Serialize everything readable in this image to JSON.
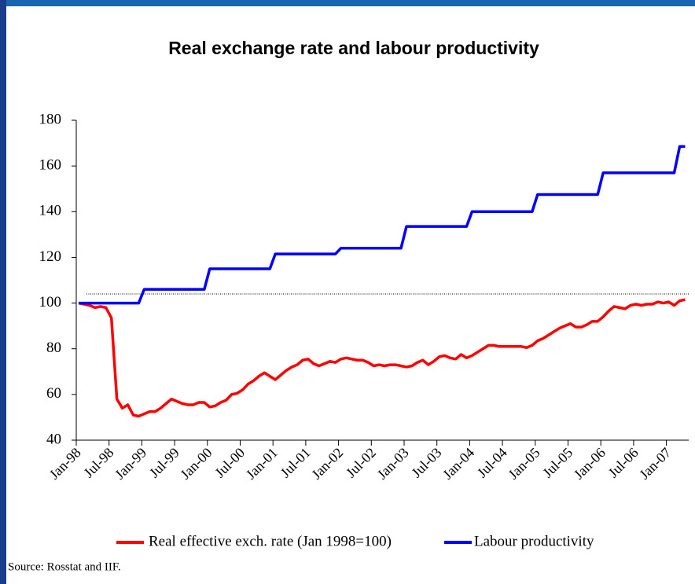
{
  "chart_data": {
    "type": "line",
    "title": "Real exchange rate and labour productivity",
    "source": "Source: Rosstat and IIF.",
    "categories": [
      "Jan-98",
      null,
      null,
      null,
      null,
      null,
      "Jul-98",
      null,
      null,
      null,
      null,
      null,
      "Jan-99",
      null,
      null,
      null,
      null,
      null,
      "Jul-99",
      null,
      null,
      null,
      null,
      null,
      "Jan-00",
      null,
      null,
      null,
      null,
      null,
      "Jul-00",
      null,
      null,
      null,
      null,
      null,
      "Jan-01",
      null,
      null,
      null,
      null,
      null,
      "Jul-01",
      null,
      null,
      null,
      null,
      null,
      "Jan-02",
      null,
      null,
      null,
      null,
      null,
      "Jul-02",
      null,
      null,
      null,
      null,
      null,
      "Jan-03",
      null,
      null,
      null,
      null,
      null,
      "Jul-03",
      null,
      null,
      null,
      null,
      null,
      "Jan-04",
      null,
      null,
      null,
      null,
      null,
      "Jul-04",
      null,
      null,
      null,
      null,
      null,
      "Jan-05",
      null,
      null,
      null,
      null,
      null,
      "Jul-05",
      null,
      null,
      null,
      null,
      null,
      "Jan-06",
      null,
      null,
      null,
      null,
      null,
      "Jul-06",
      null,
      null,
      null,
      null,
      null,
      "Jan-07",
      null,
      null,
      null
    ],
    "series": [
      {
        "name": "Real effective exch. rate (Jan 1998=100)",
        "color": "#ff0000",
        "values": [
          100,
          99.5,
          99,
          98,
          98.5,
          98,
          93.5,
          58,
          54,
          55.5,
          51,
          50.5,
          51.5,
          52.5,
          52.5,
          54,
          56,
          58,
          57,
          56,
          55.5,
          55.5,
          56.5,
          56.5,
          54.5,
          55,
          56.5,
          57.5,
          60,
          60.5,
          62,
          64.5,
          66,
          68,
          69.5,
          68,
          66.5,
          68.5,
          70.5,
          72,
          73,
          75,
          75.5,
          73.5,
          72.5,
          73.5,
          74.5,
          74,
          75.5,
          76,
          75.5,
          75,
          75,
          74,
          72.5,
          73,
          72.5,
          73,
          73,
          72.5,
          72,
          72.5,
          74,
          75,
          73,
          74.5,
          76.5,
          77,
          76,
          75.5,
          77.5,
          76,
          77,
          78.5,
          80,
          81.5,
          81.5,
          81,
          81,
          81,
          81,
          81,
          80.5,
          81.5,
          83.5,
          84.5,
          86,
          87.5,
          89,
          90,
          91,
          89.5,
          89.5,
          90.5,
          92,
          92,
          94,
          96.5,
          98.5,
          98,
          97.5,
          99,
          99.5,
          99,
          99.5,
          99.5,
          100.5,
          100,
          100.5,
          99,
          101,
          101.5
        ]
      },
      {
        "name": "Labour productivity",
        "color": "#0000ff",
        "values": [
          100,
          100,
          100,
          100,
          100,
          100,
          100,
          100,
          100,
          100,
          100,
          100,
          106,
          106,
          106,
          106,
          106,
          106,
          106,
          106,
          106,
          106,
          106,
          106,
          115,
          115,
          115,
          115,
          115,
          115,
          115,
          115,
          115,
          115,
          115,
          115,
          121.5,
          121.5,
          121.5,
          121.5,
          121.5,
          121.5,
          121.5,
          121.5,
          121.5,
          121.5,
          121.5,
          121.5,
          124,
          124,
          124,
          124,
          124,
          124,
          124,
          124,
          124,
          124,
          124,
          124,
          133.5,
          133.5,
          133.5,
          133.5,
          133.5,
          133.5,
          133.5,
          133.5,
          133.5,
          133.5,
          133.5,
          133.5,
          140,
          140,
          140,
          140,
          140,
          140,
          140,
          140,
          140,
          140,
          140,
          140,
          147.5,
          147.5,
          147.5,
          147.5,
          147.5,
          147.5,
          147.5,
          147.5,
          147.5,
          147.5,
          147.5,
          147.5,
          157,
          157,
          157,
          157,
          157,
          157,
          157,
          157,
          157,
          157,
          157,
          157,
          157,
          157,
          168.5,
          168.5
        ]
      }
    ],
    "reference_line": 104,
    "ylim": [
      40,
      180
    ],
    "yticks": [
      40,
      60,
      80,
      100,
      120,
      140,
      160,
      180
    ]
  }
}
